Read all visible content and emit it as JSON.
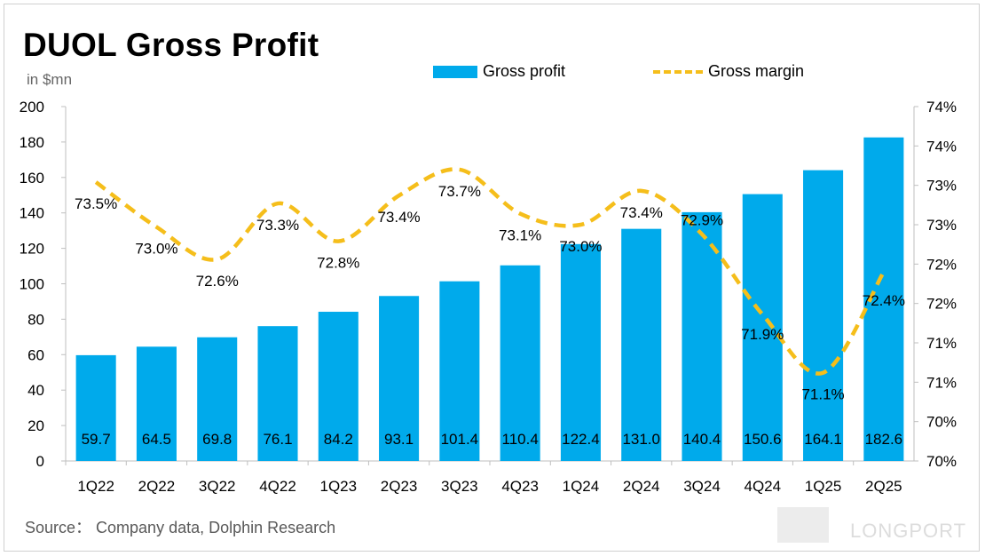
{
  "title": "DUOL Gross Profit",
  "unit": "in $mn",
  "source": "Source： Company data, Dolphin Research",
  "watermark": "LONGPORT",
  "colors": {
    "bar": "#00aaeb",
    "line": "#f5be1b",
    "axis": "#bfbfbf"
  },
  "chart_data": {
    "type": "bar",
    "categories": [
      "1Q22",
      "2Q22",
      "3Q22",
      "4Q22",
      "1Q23",
      "2Q23",
      "3Q23",
      "4Q23",
      "1Q24",
      "2Q24",
      "3Q24",
      "4Q24",
      "1Q25",
      "2Q25"
    ],
    "series": [
      {
        "name": "Gross profit",
        "type": "bar",
        "axis": "left",
        "values": [
          59.7,
          64.5,
          69.8,
          76.1,
          84.2,
          93.1,
          101.4,
          110.4,
          122.4,
          131.0,
          140.4,
          150.6,
          164.1,
          182.6
        ],
        "labels": [
          "59.7",
          "64.5",
          "69.8",
          "76.1",
          "84.2",
          "93.1",
          "101.4",
          "110.4",
          "122.4",
          "131.0",
          "140.4",
          "150.6",
          "164.1",
          "182.6"
        ]
      },
      {
        "name": "Gross margin",
        "type": "line",
        "style": "dashed",
        "axis": "right",
        "values": [
          73.54,
          72.97,
          72.56,
          73.27,
          72.79,
          73.37,
          73.7,
          73.14,
          73.0,
          73.43,
          72.88,
          71.86,
          71.12,
          72.4
        ],
        "labels": [
          "73.5%",
          "73.0%",
          "72.6%",
          "73.3%",
          "72.8%",
          "73.4%",
          "73.7%",
          "73.1%",
          "73.0%",
          "73.4%",
          "72.9%",
          "71.9%",
          "71.1%",
          "72.4%"
        ]
      }
    ],
    "y_left": {
      "min": 0,
      "max": 200,
      "ticks": [
        "0",
        "20",
        "40",
        "60",
        "80",
        "100",
        "120",
        "140",
        "160",
        "180",
        "200"
      ]
    },
    "y_right": {
      "min": 70.0,
      "max": 74.5,
      "ticks": [
        "70%",
        "70%",
        "71%",
        "71%",
        "72%",
        "72%",
        "73%",
        "73%",
        "74%",
        "74%"
      ]
    },
    "legend": "top-center",
    "grid": false
  }
}
